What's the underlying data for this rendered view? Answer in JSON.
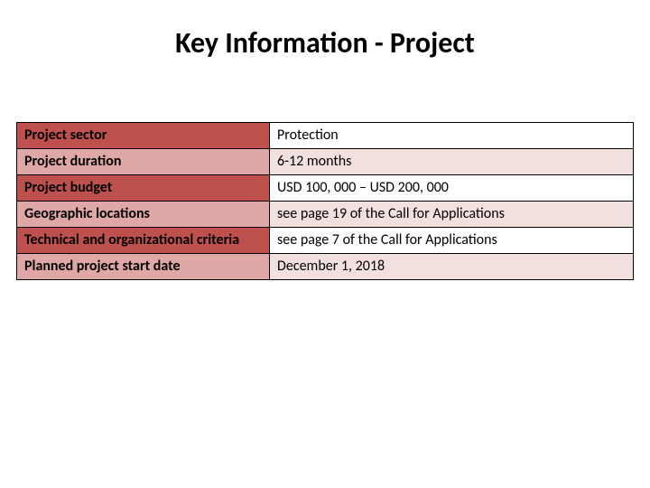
{
  "title": "Key Information - Project",
  "table": {
    "label_col_width_pct": 41,
    "value_col_width_pct": 59,
    "border_color": "#000000",
    "colors": {
      "label_odd": "#be504d",
      "label_even": "#dfa7a6",
      "value_odd": "#ffffff",
      "value_even": "#f2e0df"
    },
    "font_size": 16,
    "rows": [
      {
        "label": "Project sector",
        "value": "Protection"
      },
      {
        "label": "Project duration",
        "value": "6-12 months"
      },
      {
        "label": "Project budget",
        "value": "USD 100, 000 – USD 200, 000"
      },
      {
        "label": "Geographic locations",
        "value": "see page 19 of the Call for Applications"
      },
      {
        "label": "Technical and organizational criteria",
        "value": "see page 7 of the Call for Applications"
      },
      {
        "label": "Planned project start date",
        "value": "December 1, 2018"
      }
    ]
  }
}
